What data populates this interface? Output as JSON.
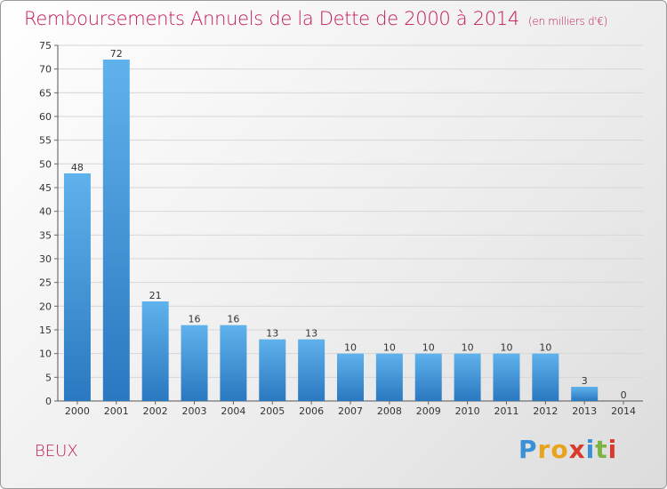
{
  "header": {
    "title": "Remboursements Annuels de la Dette de 2000 à 2014",
    "subtitle": "(en milliers d'€)"
  },
  "commune": "BEUX",
  "logo": {
    "letters": [
      "P",
      "r",
      "o",
      "x",
      "i",
      "t",
      "i"
    ],
    "colors": [
      "#3a8fd6",
      "#e8a21c",
      "#e8a21c",
      "#d93a2b",
      "#3a8fd6",
      "#7cb342",
      "#d93a2b"
    ]
  },
  "colors": {
    "title": "#c2185b",
    "bar_light": "#5fb2ec",
    "bar_dark": "#2a78c0",
    "grid": "#d6d6d6"
  },
  "chart_data": {
    "type": "bar",
    "title": "Remboursements Annuels de la Dette de 2000 à 2014",
    "subtitle": "(en milliers d'€)",
    "xlabel": "",
    "ylabel": "",
    "categories": [
      "2000",
      "2001",
      "2002",
      "2003",
      "2004",
      "2005",
      "2006",
      "2007",
      "2008",
      "2009",
      "2010",
      "2011",
      "2012",
      "2013",
      "2014"
    ],
    "values": [
      48,
      72,
      21,
      16,
      16,
      13,
      13,
      10,
      10,
      10,
      10,
      10,
      10,
      3,
      0
    ],
    "ylim": [
      0,
      75
    ],
    "yticks": [
      0,
      5,
      10,
      15,
      20,
      25,
      30,
      35,
      40,
      45,
      50,
      55,
      60,
      65,
      70,
      75
    ],
    "grid": true,
    "legend": "none"
  }
}
